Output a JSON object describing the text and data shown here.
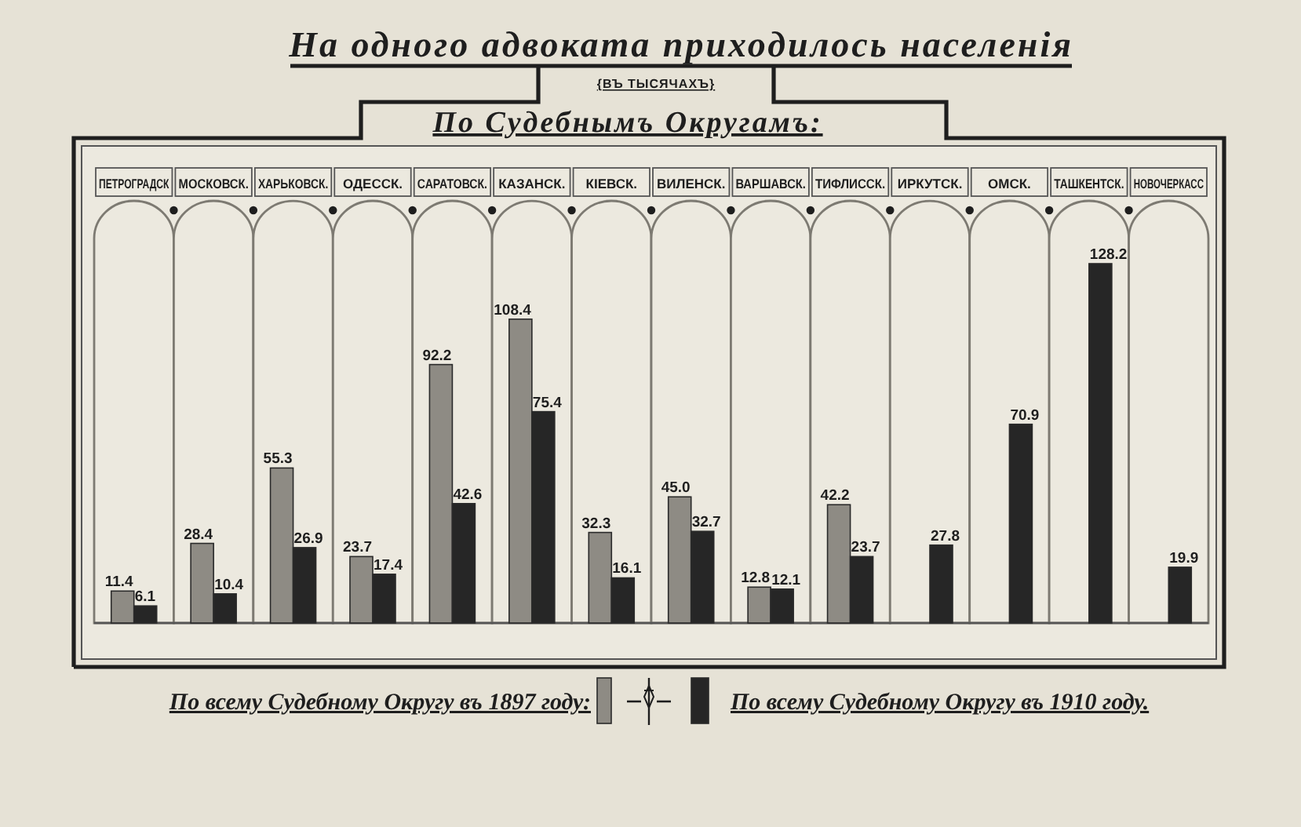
{
  "chart_data": {
    "type": "bar",
    "title": "На одного адвоката приходилось населенія",
    "subtitle": "{ВЪ ТЫСЯЧАХЪ}",
    "xlabel": "По Судебнымъ Округамъ:",
    "categories": [
      "ПЕТРОГРАДСК",
      "МОСКОВСК.",
      "ХАРЬКОВСК.",
      "ОДЕССК.",
      "САРАТОВСК.",
      "КАЗАНСК.",
      "КІЕВСК.",
      "ВИЛЕНСК.",
      "ВАРШАВСК.",
      "ТИФЛИССК.",
      "ИРКУТСК.",
      "ОМСК.",
      "ТАШКЕНТСК.",
      "НОВОЧЕРКАСС"
    ],
    "series": [
      {
        "name": "По всему Судебному Округу въ 1897 году:",
        "color": "#8e8b84",
        "values": [
          11.4,
          28.4,
          55.3,
          23.7,
          92.2,
          108.4,
          32.3,
          45.0,
          12.8,
          42.2,
          null,
          null,
          null,
          null
        ],
        "value_labels": [
          "11.4",
          "28.4",
          "55.3",
          "23.7",
          "92.2",
          "108.4",
          "32.3",
          "45.0",
          "12.8",
          "42.2",
          null,
          null,
          null,
          null
        ]
      },
      {
        "name": "По всему Судебному Округу въ 1910 году.",
        "color": "#262626",
        "values": [
          6.1,
          10.4,
          26.9,
          17.4,
          42.6,
          75.4,
          16.1,
          32.7,
          12.1,
          23.7,
          27.8,
          70.9,
          128.2,
          19.9
        ],
        "value_labels": [
          "6.1",
          "10.4",
          "26.9",
          "17.4",
          "42.6",
          "75.4",
          "16.1",
          "32.7",
          "12.1",
          "23.7",
          "27.8",
          "70.9",
          "128.2",
          "19.9"
        ]
      }
    ],
    "legend": "bottom"
  }
}
